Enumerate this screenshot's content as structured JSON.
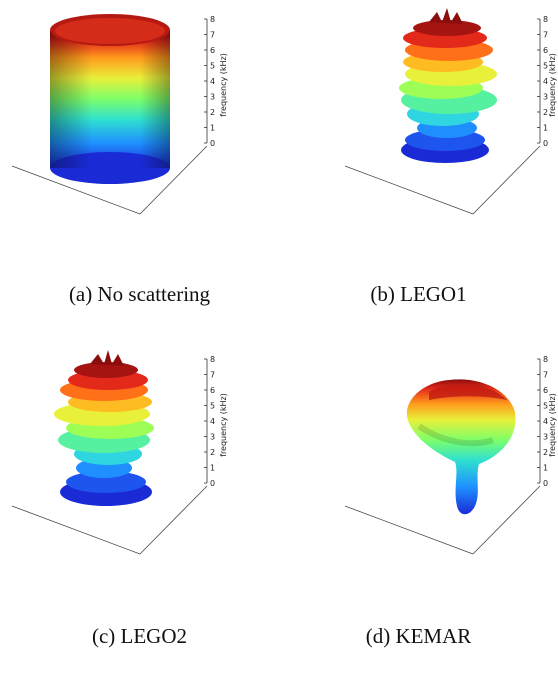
{
  "figure": {
    "panels": [
      {
        "id": "a",
        "caption": "(a) No scattering",
        "shape": "cylinder",
        "z_axis_label": "frequency (kHz)",
        "z_ticks": [
          "0",
          "1",
          "2",
          "3",
          "4",
          "5",
          "6",
          "7",
          "8"
        ]
      },
      {
        "id": "b",
        "caption": "(b) LEGO1",
        "shape": "lego",
        "z_axis_label": "frequency (kHz)",
        "z_ticks": [
          "0",
          "1",
          "2",
          "3",
          "4",
          "5",
          "6",
          "7",
          "8"
        ]
      },
      {
        "id": "c",
        "caption": "(c) LEGO2",
        "shape": "lego",
        "z_axis_label": "frequency (kHz)",
        "z_ticks": [
          "0",
          "1",
          "2",
          "3",
          "4",
          "5",
          "6",
          "7",
          "8"
        ]
      },
      {
        "id": "d",
        "caption": "(d) KEMAR",
        "shape": "kemar",
        "z_axis_label": "frequency (kHz)",
        "z_ticks": [
          "0",
          "1",
          "2",
          "3",
          "4",
          "5",
          "6",
          "7",
          "8"
        ]
      }
    ],
    "colormap": [
      "#1a2bd6",
      "#1f8fff",
      "#2fe0d0",
      "#7dff6a",
      "#e8f03a",
      "#ff9a1c",
      "#e32a1a",
      "#8c0d0d"
    ]
  }
}
